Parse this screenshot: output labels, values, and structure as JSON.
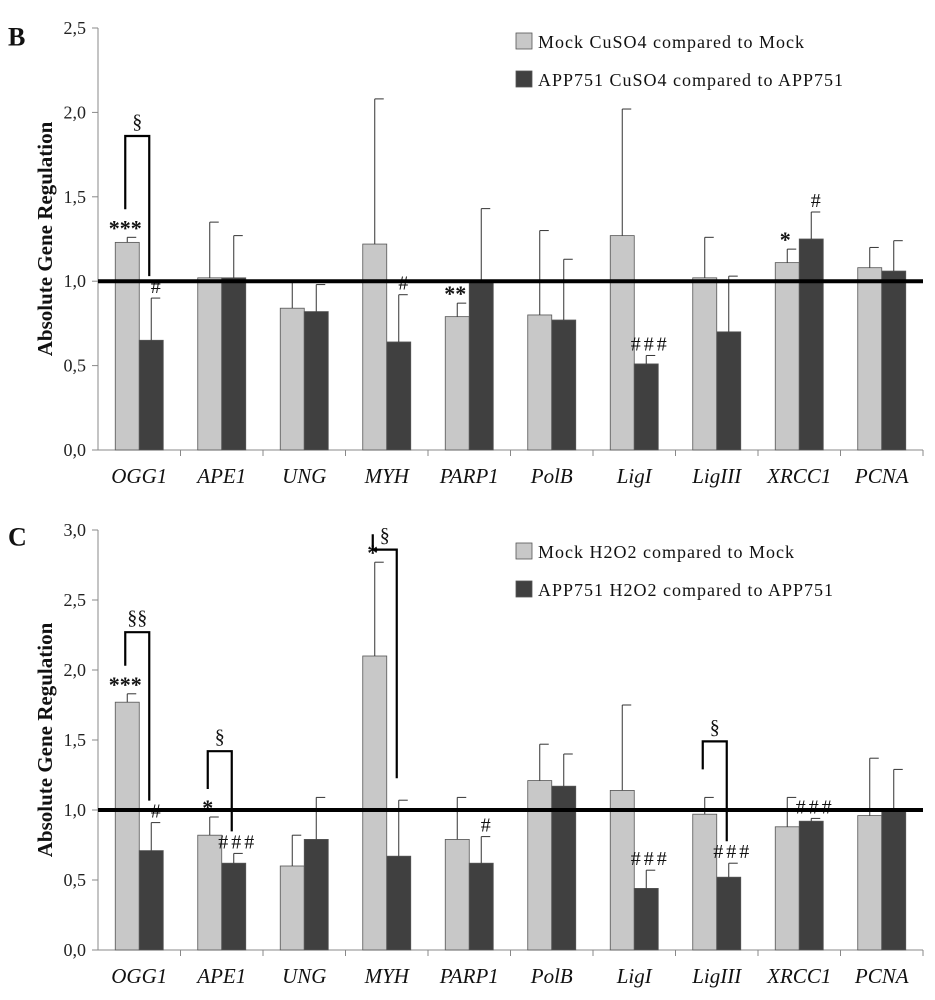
{
  "chart_data": [
    {
      "type": "bar",
      "panel_label": "B",
      "ylabel": "Absolute Gene Regulation",
      "ylim": [
        0,
        2.5
      ],
      "yticks": [
        "0,0",
        "0,5",
        "1,0",
        "1,5",
        "2,0",
        "2,5"
      ],
      "ytick_values": [
        0,
        0.5,
        1.0,
        1.5,
        2.0,
        2.5
      ],
      "reference_line": 1.0,
      "categories": [
        "OGG1",
        "APE1",
        "UNG",
        "MYH",
        "PARP1",
        "PolB",
        "LigI",
        "LigIII",
        "XRCC1",
        "PCNA"
      ],
      "legend_position": "top-right",
      "series": [
        {
          "name": "Mock CuSO4 compared to Mock",
          "color": "#c8c8c8",
          "values": [
            1.23,
            1.02,
            0.84,
            1.22,
            0.79,
            0.8,
            1.27,
            1.02,
            1.11,
            1.08
          ],
          "errors": [
            0.03,
            0.33,
            0.16,
            0.86,
            0.08,
            0.5,
            0.75,
            0.24,
            0.08,
            0.12
          ],
          "annotations": [
            "***",
            "",
            "",
            "",
            "**",
            "",
            "",
            "",
            "*",
            ""
          ]
        },
        {
          "name": "APP751 CuSO4 compared to APP751",
          "color": "#404040",
          "values": [
            0.65,
            1.02,
            0.82,
            0.64,
            1.0,
            0.77,
            0.51,
            0.7,
            1.25,
            1.06
          ],
          "errors": [
            0.25,
            0.25,
            0.16,
            0.28,
            0.43,
            0.36,
            0.05,
            0.33,
            0.16,
            0.18
          ],
          "annotations": [
            "#",
            "",
            "",
            "#",
            "",
            "",
            "###",
            "",
            "#",
            ""
          ]
        }
      ],
      "brackets": [
        {
          "category": "OGG1",
          "top": 1.86,
          "label": "§"
        }
      ]
    },
    {
      "type": "bar",
      "panel_label": "C",
      "ylabel": "Absolute Gene Regulation",
      "ylim": [
        0,
        3.0
      ],
      "yticks": [
        "0,0",
        "0,5",
        "1,0",
        "1,5",
        "2,0",
        "2,5",
        "3,0"
      ],
      "ytick_values": [
        0,
        0.5,
        1.0,
        1.5,
        2.0,
        2.5,
        3.0
      ],
      "reference_line": 1.0,
      "categories": [
        "OGG1",
        "APE1",
        "UNG",
        "MYH",
        "PARP1",
        "PolB",
        "LigI",
        "LigIII",
        "XRCC1",
        "PCNA"
      ],
      "legend_position": "top-right",
      "series": [
        {
          "name": "Mock H2O2 compared to Mock",
          "color": "#c8c8c8",
          "values": [
            1.77,
            0.82,
            0.6,
            2.1,
            0.79,
            1.21,
            1.14,
            0.97,
            0.88,
            0.96
          ],
          "errors": [
            0.06,
            0.13,
            0.22,
            0.67,
            0.3,
            0.26,
            0.61,
            0.12,
            0.21,
            0.41
          ],
          "annotations": [
            "***",
            "*",
            "",
            "*",
            "",
            "",
            "",
            "",
            "",
            ""
          ]
        },
        {
          "name": "APP751 H2O2 compared to APP751",
          "color": "#404040",
          "values": [
            0.71,
            0.62,
            0.79,
            0.67,
            0.62,
            1.17,
            0.44,
            0.52,
            0.92,
            1.01
          ],
          "errors": [
            0.2,
            0.07,
            0.3,
            0.4,
            0.19,
            0.23,
            0.13,
            0.1,
            0.02,
            0.28
          ],
          "annotations": [
            "#",
            "###",
            "",
            "",
            "#",
            "",
            "###",
            "###",
            "###",
            ""
          ]
        }
      ],
      "brackets": [
        {
          "category": "OGG1",
          "top": 2.27,
          "label": "§§"
        },
        {
          "category": "APE1",
          "top": 1.42,
          "label": "§"
        },
        {
          "category": "MYH",
          "top": 2.86,
          "label": "§"
        },
        {
          "category": "LigIII",
          "top": 1.49,
          "label": "§"
        }
      ]
    }
  ]
}
